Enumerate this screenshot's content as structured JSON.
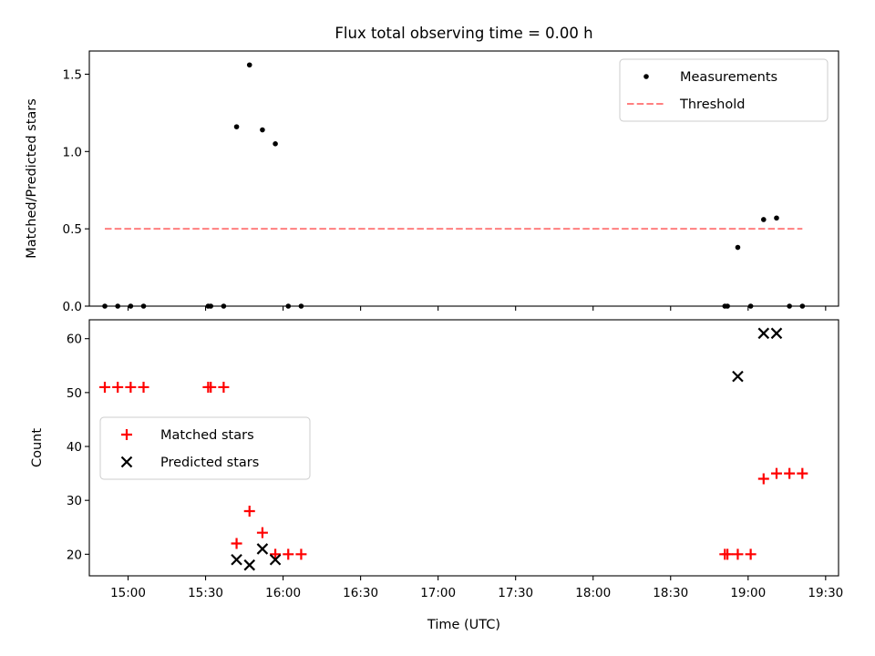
{
  "title": "Flux total observing time = 0.00 h",
  "chart_data": [
    {
      "type": "scatter",
      "ylabel": "Matched/Predicted stars",
      "xlabel": "",
      "xlim": [
        "14:45",
        "19:35"
      ],
      "ylim": [
        0,
        1.65
      ],
      "yticks": [
        0,
        0.5,
        1.0,
        1.5
      ],
      "ytick_labels": [
        "0.0",
        "0.5",
        "1.0",
        "1.5"
      ],
      "grid": false,
      "legend_position": "upper right",
      "series": [
        {
          "name": "Measurements",
          "marker": "dot",
          "color": "#000000",
          "points": [
            {
              "x": "14:51",
              "y": 0
            },
            {
              "x": "14:56",
              "y": 0
            },
            {
              "x": "15:01",
              "y": 0
            },
            {
              "x": "15:06",
              "y": 0
            },
            {
              "x": "15:31",
              "y": 0
            },
            {
              "x": "15:32",
              "y": 0
            },
            {
              "x": "15:37",
              "y": 0
            },
            {
              "x": "15:42",
              "y": 1.16
            },
            {
              "x": "15:47",
              "y": 1.56
            },
            {
              "x": "15:52",
              "y": 1.14
            },
            {
              "x": "15:57",
              "y": 1.05
            },
            {
              "x": "16:02",
              "y": 0
            },
            {
              "x": "16:07",
              "y": 0
            },
            {
              "x": "18:51",
              "y": 0
            },
            {
              "x": "18:52",
              "y": 0
            },
            {
              "x": "18:56",
              "y": 0.38
            },
            {
              "x": "19:01",
              "y": 0
            },
            {
              "x": "19:06",
              "y": 0.56
            },
            {
              "x": "19:11",
              "y": 0.57
            },
            {
              "x": "19:16",
              "y": 0
            },
            {
              "x": "19:21",
              "y": 0
            }
          ]
        },
        {
          "name": "Threshold",
          "style": "dashed",
          "color": "#ff7f7f",
          "points": [
            {
              "x": "14:51",
              "y": 0.5
            },
            {
              "x": "19:21",
              "y": 0.5
            }
          ]
        }
      ]
    },
    {
      "type": "scatter",
      "xlabel": "Time (UTC)",
      "ylabel": "Count",
      "xlim": [
        "14:45",
        "19:35"
      ],
      "ylim": [
        16,
        63.5
      ],
      "xticks": [
        "15:00",
        "15:30",
        "16:00",
        "16:30",
        "17:00",
        "17:30",
        "18:00",
        "18:30",
        "19:00",
        "19:30"
      ],
      "yticks": [
        20,
        30,
        40,
        50,
        60
      ],
      "ytick_labels": [
        "20",
        "30",
        "40",
        "50",
        "60"
      ],
      "grid": false,
      "legend_position": "center left",
      "series": [
        {
          "name": "Matched stars",
          "marker": "plus",
          "color": "#ff0000",
          "points": [
            {
              "x": "14:51",
              "y": 51
            },
            {
              "x": "14:56",
              "y": 51
            },
            {
              "x": "15:01",
              "y": 51
            },
            {
              "x": "15:06",
              "y": 51
            },
            {
              "x": "15:31",
              "y": 51
            },
            {
              "x": "15:32",
              "y": 51
            },
            {
              "x": "15:37",
              "y": 51
            },
            {
              "x": "15:42",
              "y": 22
            },
            {
              "x": "15:47",
              "y": 28
            },
            {
              "x": "15:52",
              "y": 24
            },
            {
              "x": "15:57",
              "y": 20
            },
            {
              "x": "16:02",
              "y": 20
            },
            {
              "x": "16:07",
              "y": 20
            },
            {
              "x": "18:51",
              "y": 20
            },
            {
              "x": "18:52",
              "y": 20
            },
            {
              "x": "18:56",
              "y": 20
            },
            {
              "x": "19:01",
              "y": 20
            },
            {
              "x": "19:06",
              "y": 34
            },
            {
              "x": "19:11",
              "y": 35
            },
            {
              "x": "19:16",
              "y": 35
            },
            {
              "x": "19:21",
              "y": 35
            }
          ]
        },
        {
          "name": "Predicted stars",
          "marker": "x",
          "color": "#000000",
          "points": [
            {
              "x": "15:42",
              "y": 19
            },
            {
              "x": "15:47",
              "y": 18
            },
            {
              "x": "15:52",
              "y": 21
            },
            {
              "x": "15:57",
              "y": 19
            },
            {
              "x": "18:56",
              "y": 53
            },
            {
              "x": "19:06",
              "y": 61
            },
            {
              "x": "19:11",
              "y": 61
            }
          ]
        }
      ]
    }
  ]
}
